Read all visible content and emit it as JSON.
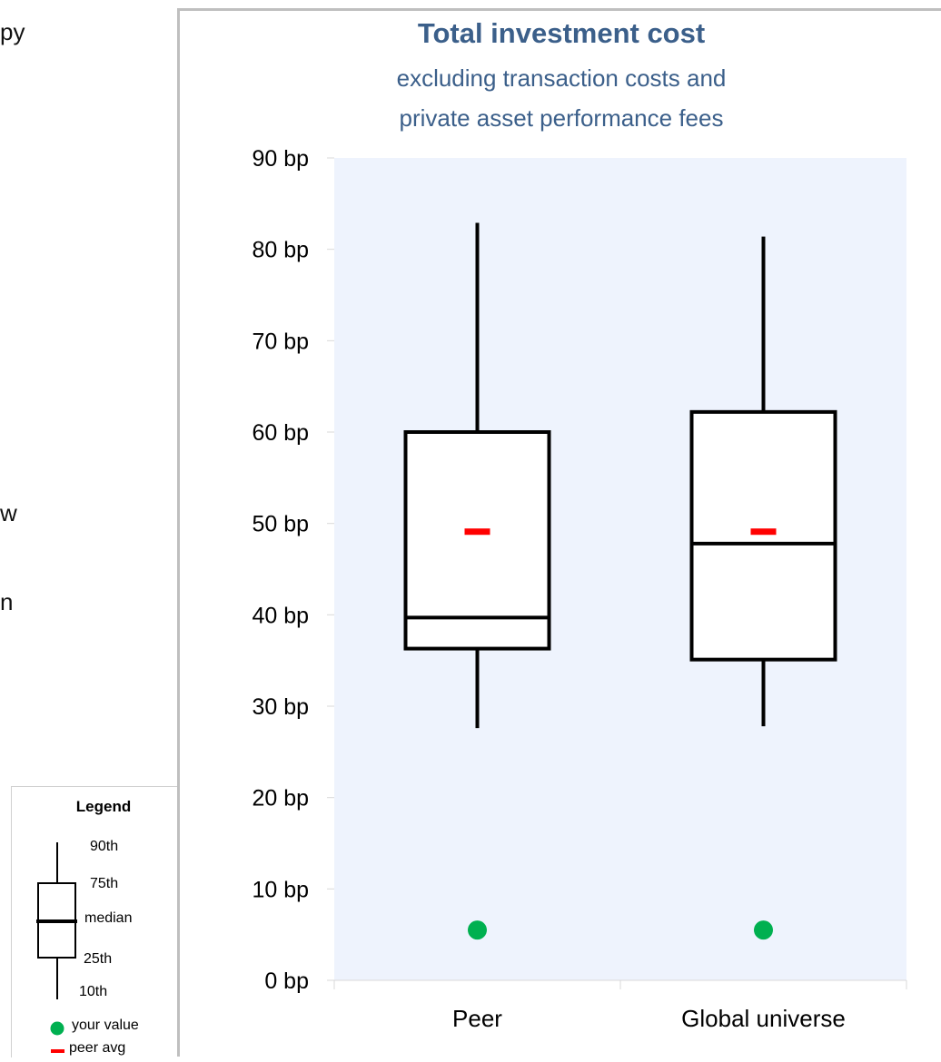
{
  "left_fragments": [
    "py",
    "w",
    "n"
  ],
  "legend": {
    "title": "Legend",
    "p90": "90th",
    "p75": "75th",
    "median": "median",
    "p25": "25th",
    "p10": "10th",
    "your_value": "your value",
    "peer_avg": "peer avg"
  },
  "colors": {
    "title": "#3b5f8a",
    "plot_bg": "#eef3fd",
    "your_value": "#00b050",
    "peer_avg": "#ff0000",
    "box": "#000000"
  },
  "chart_data": {
    "type": "boxplot",
    "title": "Total investment cost",
    "subtitle": [
      "excluding transaction costs and",
      "private asset performance fees"
    ],
    "ylim": [
      0,
      90
    ],
    "ytick_values": [
      0,
      10,
      20,
      30,
      40,
      50,
      60,
      70,
      80,
      90
    ],
    "ytick_labels": [
      "0 bp",
      "10 bp",
      "20 bp",
      "30 bp",
      "40 bp",
      "50 bp",
      "60 bp",
      "70 bp",
      "80 bp",
      "90 bp"
    ],
    "categories": [
      "Peer",
      "Global universe"
    ],
    "boxes": [
      {
        "p10": 27.6,
        "p25": 36.3,
        "median": 39.7,
        "p75": 60.0,
        "p90": 82.9,
        "peer_avg": 49.1,
        "your_value": 5.5
      },
      {
        "p10": 27.8,
        "p25": 35.1,
        "median": 47.8,
        "p75": 62.2,
        "p90": 81.4,
        "peer_avg": 49.1,
        "your_value": 5.5
      }
    ],
    "grid": false
  }
}
